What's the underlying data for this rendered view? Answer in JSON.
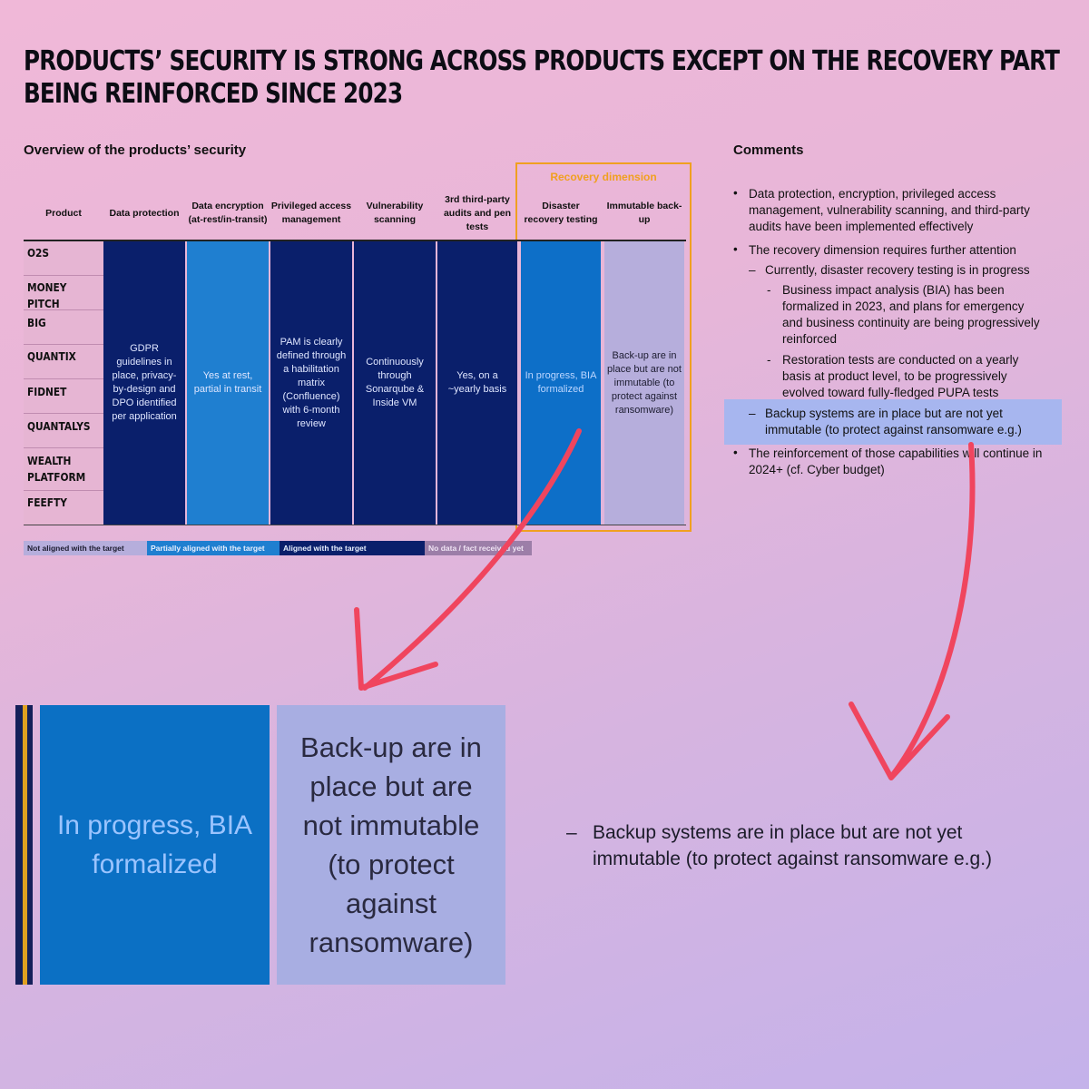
{
  "title": {
    "line1": "PRODUCTS’ SECURITY IS STRONG ACROSS PRODUCTS EXCEPT ON THE RECOVERY PART",
    "line2": "BEING REINFORCED SINCE 2023"
  },
  "overview_label": "Overview of the products’ security",
  "comments_label": "Comments",
  "table": {
    "recovery_dimension": "Recovery dimension",
    "headers": [
      "Product",
      "Data protection",
      "Data encryption (at-rest/in-transit)",
      "Privileged access management",
      "Vulnerability scanning",
      "3rd third-party audits and pen tests",
      "Disaster recovery testing",
      "Immutable back-up"
    ],
    "products": [
      "O2S",
      "MONEY PITCH",
      "BIG",
      "QUANTIX",
      "FIDNET",
      "QUANTALYS",
      "WEALTH PLATFORM",
      "FEEFTY"
    ],
    "cells": [
      "GDPR guidelines in place, privacy-by-design and DPO identified per application",
      "Yes at rest, partial in transit",
      "PAM is clearly defined through a habilitation matrix (Confluence) with 6-month review",
      "Continuously through Sonarqube & Inside VM",
      "Yes, on a ~yearly basis",
      "In progress, BIA formalized",
      "Back-up are in place but are not immutable (to protect against ransomware)"
    ],
    "colors": {
      "aligned": "#0a1f6b",
      "partial": "#1f7fd0",
      "progress": "#0d6fc8",
      "not_aligned": "#b6aedc",
      "product_bg": "#e6b5d3",
      "recovery_border": "#f0a020"
    }
  },
  "legend": [
    "Not aligned with the target",
    "Partially aligned with the target",
    "Aligned with the target",
    "No data / fact received yet"
  ],
  "comments": {
    "b1": "Data protection, encryption, privileged access management, vulnerability scanning, and third-party audits have been implemented effectively",
    "b2": "The recovery dimension requires further attention",
    "d1": "Currently, disaster recovery testing is in progress",
    "d1a": "Business impact analysis (BIA) has been formalized in 2023, and plans for emergency and business continuity are being progressively reinforced",
    "d1b": "Restoration tests are conducted on a yearly basis at product level, to be progressively evolved toward fully-fledged PUPA tests",
    "d2": "Backup systems are in place but are not yet immutable (to protect against ransomware e.g.)",
    "b3": "The reinforcement of those capabilities will continue in 2024+ (cf. Cyber budget)"
  },
  "zoom": {
    "left_cell": "In progress, BIA formalized",
    "right_cell": "Back-up are in place but are not immutable (to protect against ransomware)",
    "comment": "Backup systems are in place but are not yet immutable (to protect against ransomware e.g.)",
    "highlight_color": "#a7b6ef",
    "arrow_color": "#f0455e"
  }
}
